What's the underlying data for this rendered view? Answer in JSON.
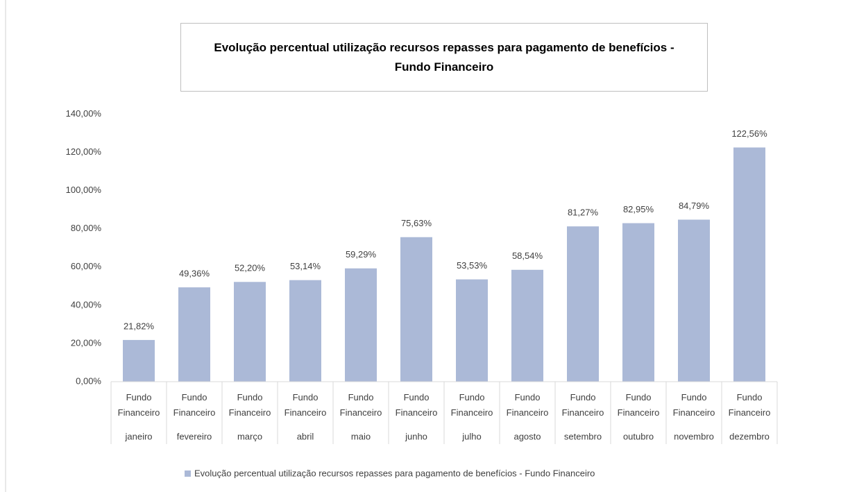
{
  "chart_data": {
    "type": "bar",
    "title": "Evolução percentual utilização recursos repasses para pagamento de benefícios - Fundo Financeiro",
    "category_group": "Fundo Financeiro",
    "categories": [
      "janeiro",
      "fevereiro",
      "março",
      "abril",
      "maio",
      "junho",
      "julho",
      "agosto",
      "setembro",
      "outubro",
      "novembro",
      "dezembro"
    ],
    "series": [
      {
        "name": "Evolução percentual utilização recursos repasses para pagamento de benefícios - Fundo Financeiro",
        "color": "#abb9d7",
        "values": [
          21.82,
          49.36,
          52.2,
          53.14,
          59.29,
          75.63,
          53.53,
          58.54,
          81.27,
          82.95,
          84.79,
          122.56
        ],
        "value_labels": [
          "21,82%",
          "49,36%",
          "52,20%",
          "53,14%",
          "59,29%",
          "75,63%",
          "53,53%",
          "58,54%",
          "81,27%",
          "82,95%",
          "84,79%",
          "122,56%"
        ]
      }
    ],
    "ylim": [
      0,
      140
    ],
    "yticks": [
      {
        "value": 0,
        "label": "0,00%"
      },
      {
        "value": 20,
        "label": "20,00%"
      },
      {
        "value": 40,
        "label": "40,00%"
      },
      {
        "value": 60,
        "label": "60,00%"
      },
      {
        "value": 80,
        "label": "80,00%"
      },
      {
        "value": 100,
        "label": "100,00%"
      },
      {
        "value": 120,
        "label": "120,00%"
      },
      {
        "value": 140,
        "label": "140,00%"
      }
    ],
    "grid": false,
    "legend": "bottom"
  }
}
